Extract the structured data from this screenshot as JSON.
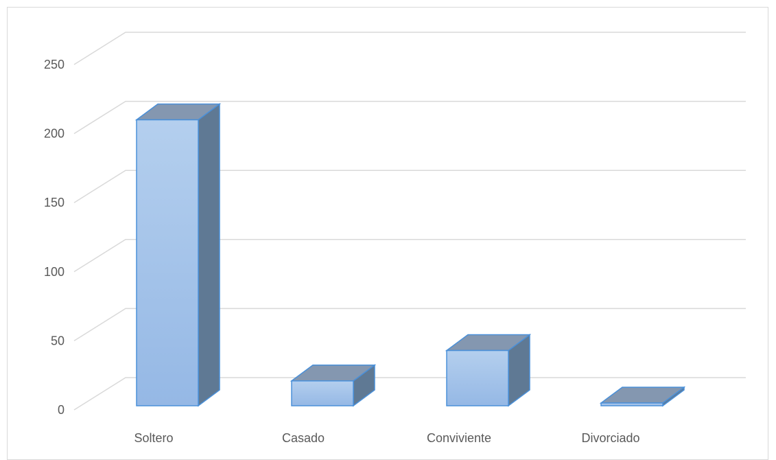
{
  "chart_data": {
    "type": "bar",
    "style": "3d-column",
    "title": "",
    "xlabel": "",
    "ylabel": "",
    "categories": [
      "Soltero",
      "Casado",
      "Conviviente",
      "Divorciado"
    ],
    "values": [
      207,
      18,
      40,
      2
    ],
    "ylim": [
      0,
      250
    ],
    "yticks": [
      0,
      50,
      100,
      150,
      200,
      250
    ],
    "grid": true,
    "legend": "none",
    "colors": {
      "bar_front_top": "#b4cfee",
      "bar_front_bottom": "#95b8e5",
      "bar_side": "#5f7994",
      "bar_top": "#8497b0",
      "bar_edge": "#4a90d9",
      "gridline": "#d9d9d9",
      "text": "#595959"
    }
  }
}
